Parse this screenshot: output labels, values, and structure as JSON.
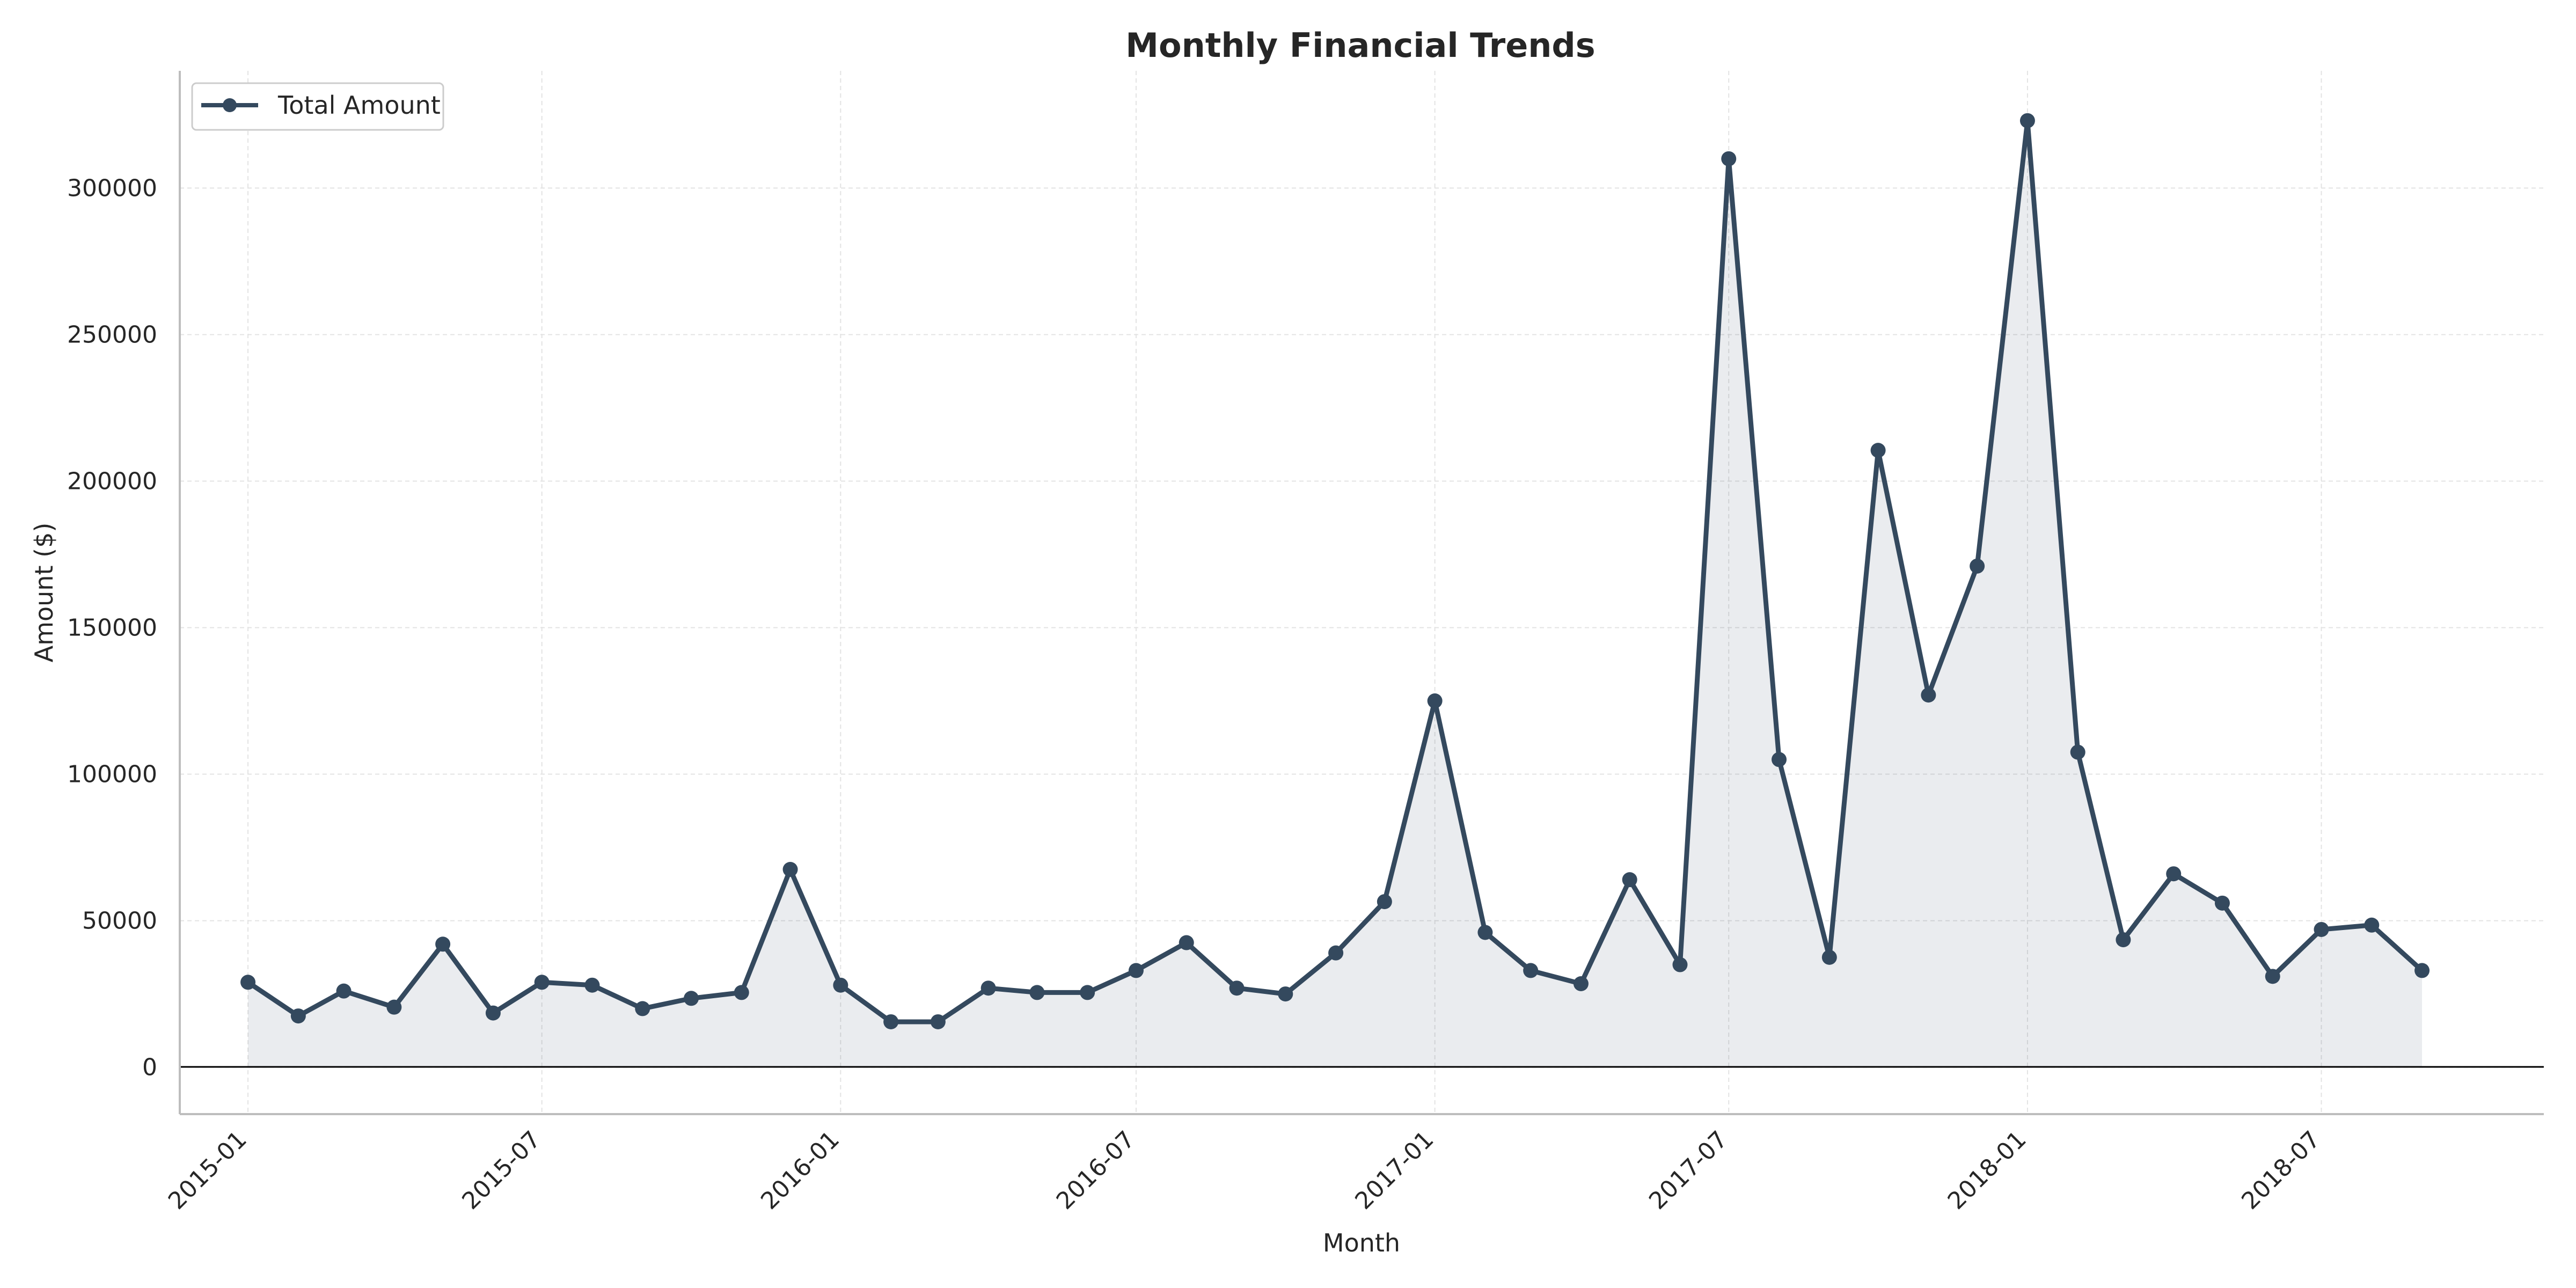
{
  "chart_data": {
    "type": "line",
    "title": "Monthly Financial Trends",
    "xlabel": "Month",
    "ylabel": "Amount ($)",
    "x": [
      "2015-01",
      "2015-02",
      "2015-03",
      "2015-04",
      "2015-05",
      "2015-06",
      "2015-07",
      "2015-08",
      "2015-09",
      "2015-10",
      "2015-11",
      "2015-12",
      "2016-01",
      "2016-02",
      "2016-03",
      "2016-04",
      "2016-05",
      "2016-06",
      "2016-07",
      "2016-08",
      "2016-09",
      "2016-10",
      "2016-11",
      "2016-12",
      "2017-01",
      "2017-02",
      "2017-03",
      "2017-04",
      "2017-05",
      "2017-06",
      "2017-07",
      "2017-08",
      "2017-09",
      "2017-10",
      "2017-11",
      "2017-12",
      "2018-01",
      "2018-02",
      "2018-03",
      "2018-04",
      "2018-05",
      "2018-06",
      "2018-07",
      "2018-08",
      "2018-09"
    ],
    "x_ticks": [
      "2015-01",
      "2015-07",
      "2016-01",
      "2016-07",
      "2017-01",
      "2017-07",
      "2018-01",
      "2018-07"
    ],
    "y_ticks": [
      0,
      50000,
      100000,
      150000,
      200000,
      250000,
      300000
    ],
    "ylim": [
      -16000,
      340000
    ],
    "xlim": [
      "2014-11-20",
      "2018-11-15"
    ],
    "series": [
      {
        "name": "Total Amount",
        "color": "#34495e",
        "fill": true,
        "values": [
          29000,
          17500,
          26000,
          20500,
          42000,
          18500,
          29000,
          28000,
          20000,
          23500,
          25500,
          67500,
          28000,
          15500,
          15500,
          27000,
          25500,
          25500,
          33000,
          42500,
          27000,
          25000,
          39000,
          56500,
          125000,
          46000,
          33000,
          28500,
          64000,
          35000,
          310000,
          105000,
          37500,
          210500,
          127000,
          171000,
          323000,
          107500,
          43500,
          66000,
          56000,
          31000,
          47000,
          48500,
          33000
        ]
      }
    ],
    "grid": true,
    "legend_position": "top-left"
  }
}
